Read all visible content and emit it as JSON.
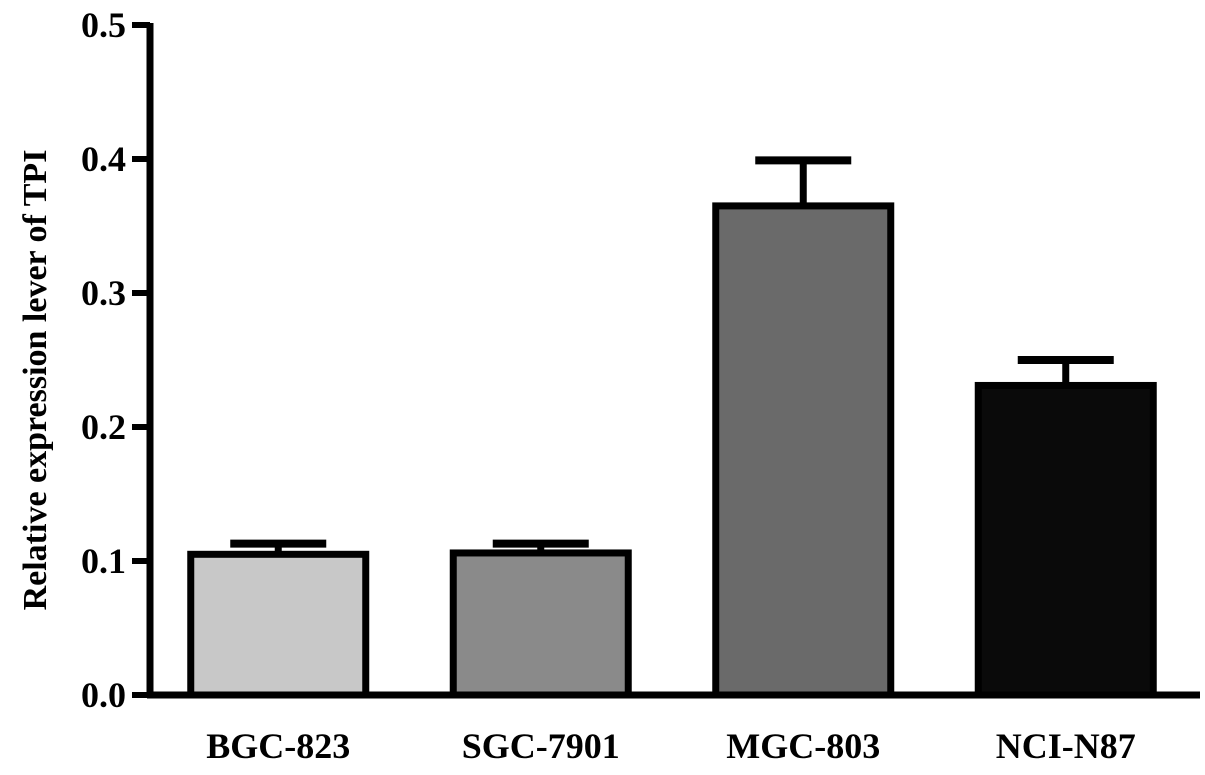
{
  "chart_data": {
    "type": "bar",
    "title": "",
    "xlabel": "",
    "ylabel": "Relative  expression  lever of TPI",
    "categories": [
      "BGC-823",
      "SGC-7901",
      "MGC-803",
      "NCI-N87"
    ],
    "values": [
      0.105,
      0.106,
      0.365,
      0.231
    ],
    "error": [
      0.008,
      0.007,
      0.034,
      0.019
    ],
    "bar_colors": [
      "#c8c8c8",
      "#8a8a8a",
      "#6a6a6a",
      "#0a0a0a"
    ],
    "ylim": [
      0,
      0.5
    ],
    "yticks": [
      "0.0",
      "0.1",
      "0.2",
      "0.3",
      "0.4",
      "0.5"
    ],
    "grid": false,
    "legend": "none"
  }
}
